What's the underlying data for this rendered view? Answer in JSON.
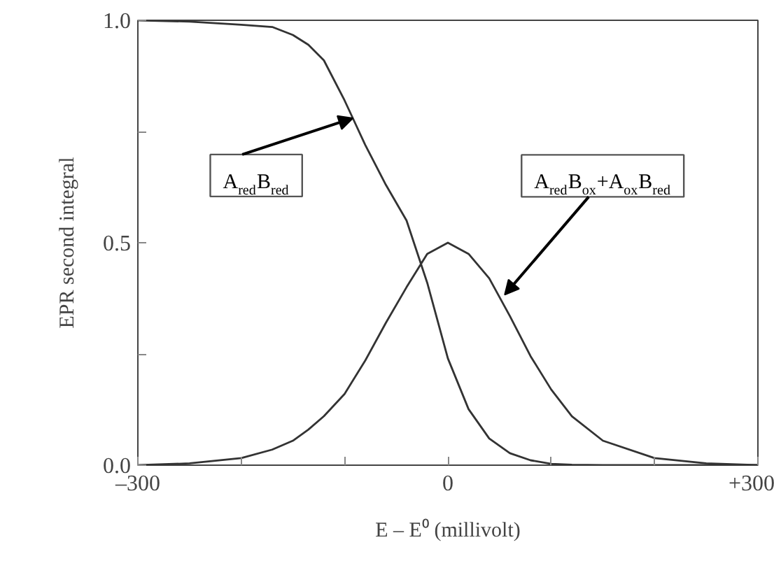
{
  "chart_data": {
    "type": "line",
    "xlabel": "E – E⁰ (millivolt)",
    "ylabel": "EPR second integral",
    "x": [
      -300,
      -250,
      -200,
      -170,
      -150,
      -135,
      -120,
      -100,
      -80,
      -60,
      -40,
      -20,
      0,
      20,
      40,
      60,
      80,
      100,
      120,
      150,
      200,
      250,
      300
    ],
    "series": [
      {
        "color": "#333333",
        "values": [
          1.0,
          0.997,
          0.99,
          0.985,
          0.967,
          0.945,
          0.91,
          0.82,
          0.72,
          0.63,
          0.55,
          0.41,
          0.24,
          0.126,
          0.06,
          0.027,
          0.011,
          0.003,
          0.001,
          0.0,
          0.0,
          0.0,
          0.0
        ]
      },
      {
        "color": "#333333",
        "values": [
          0.0,
          0.004,
          0.016,
          0.035,
          0.055,
          0.08,
          0.11,
          0.16,
          0.235,
          0.32,
          0.4,
          0.475,
          0.5,
          0.475,
          0.42,
          0.335,
          0.245,
          0.17,
          0.11,
          0.055,
          0.016,
          0.004,
          0.0
        ]
      }
    ],
    "xlim": [
      -300,
      300
    ],
    "ylim": [
      0,
      1.0
    ],
    "xticks": [
      {
        "value": -300,
        "label": "–300"
      },
      {
        "value": -200,
        "label": null
      },
      {
        "value": -100,
        "label": null
      },
      0,
      {
        "value": 100,
        "label": null
      },
      {
        "value": 200,
        "label": null
      },
      {
        "value": 300,
        "label": "+300"
      }
    ],
    "yticks": [
      {
        "value": 0,
        "label": "0.0"
      },
      {
        "value": 0.25,
        "label": null
      },
      {
        "value": 0.5,
        "label": "0.5"
      },
      {
        "value": 0.75,
        "label": null
      },
      {
        "value": 1.0,
        "label": "1.0"
      }
    ],
    "annotations": [
      {
        "text": "A$_{red}$B$_{red}$",
        "x": -92,
        "y": 0.78
      },
      {
        "text": "A$_{red}$B$_{ox}$+A$_{ox}$B$_{red}$",
        "x": 55,
        "y": 0.383
      }
    ]
  }
}
